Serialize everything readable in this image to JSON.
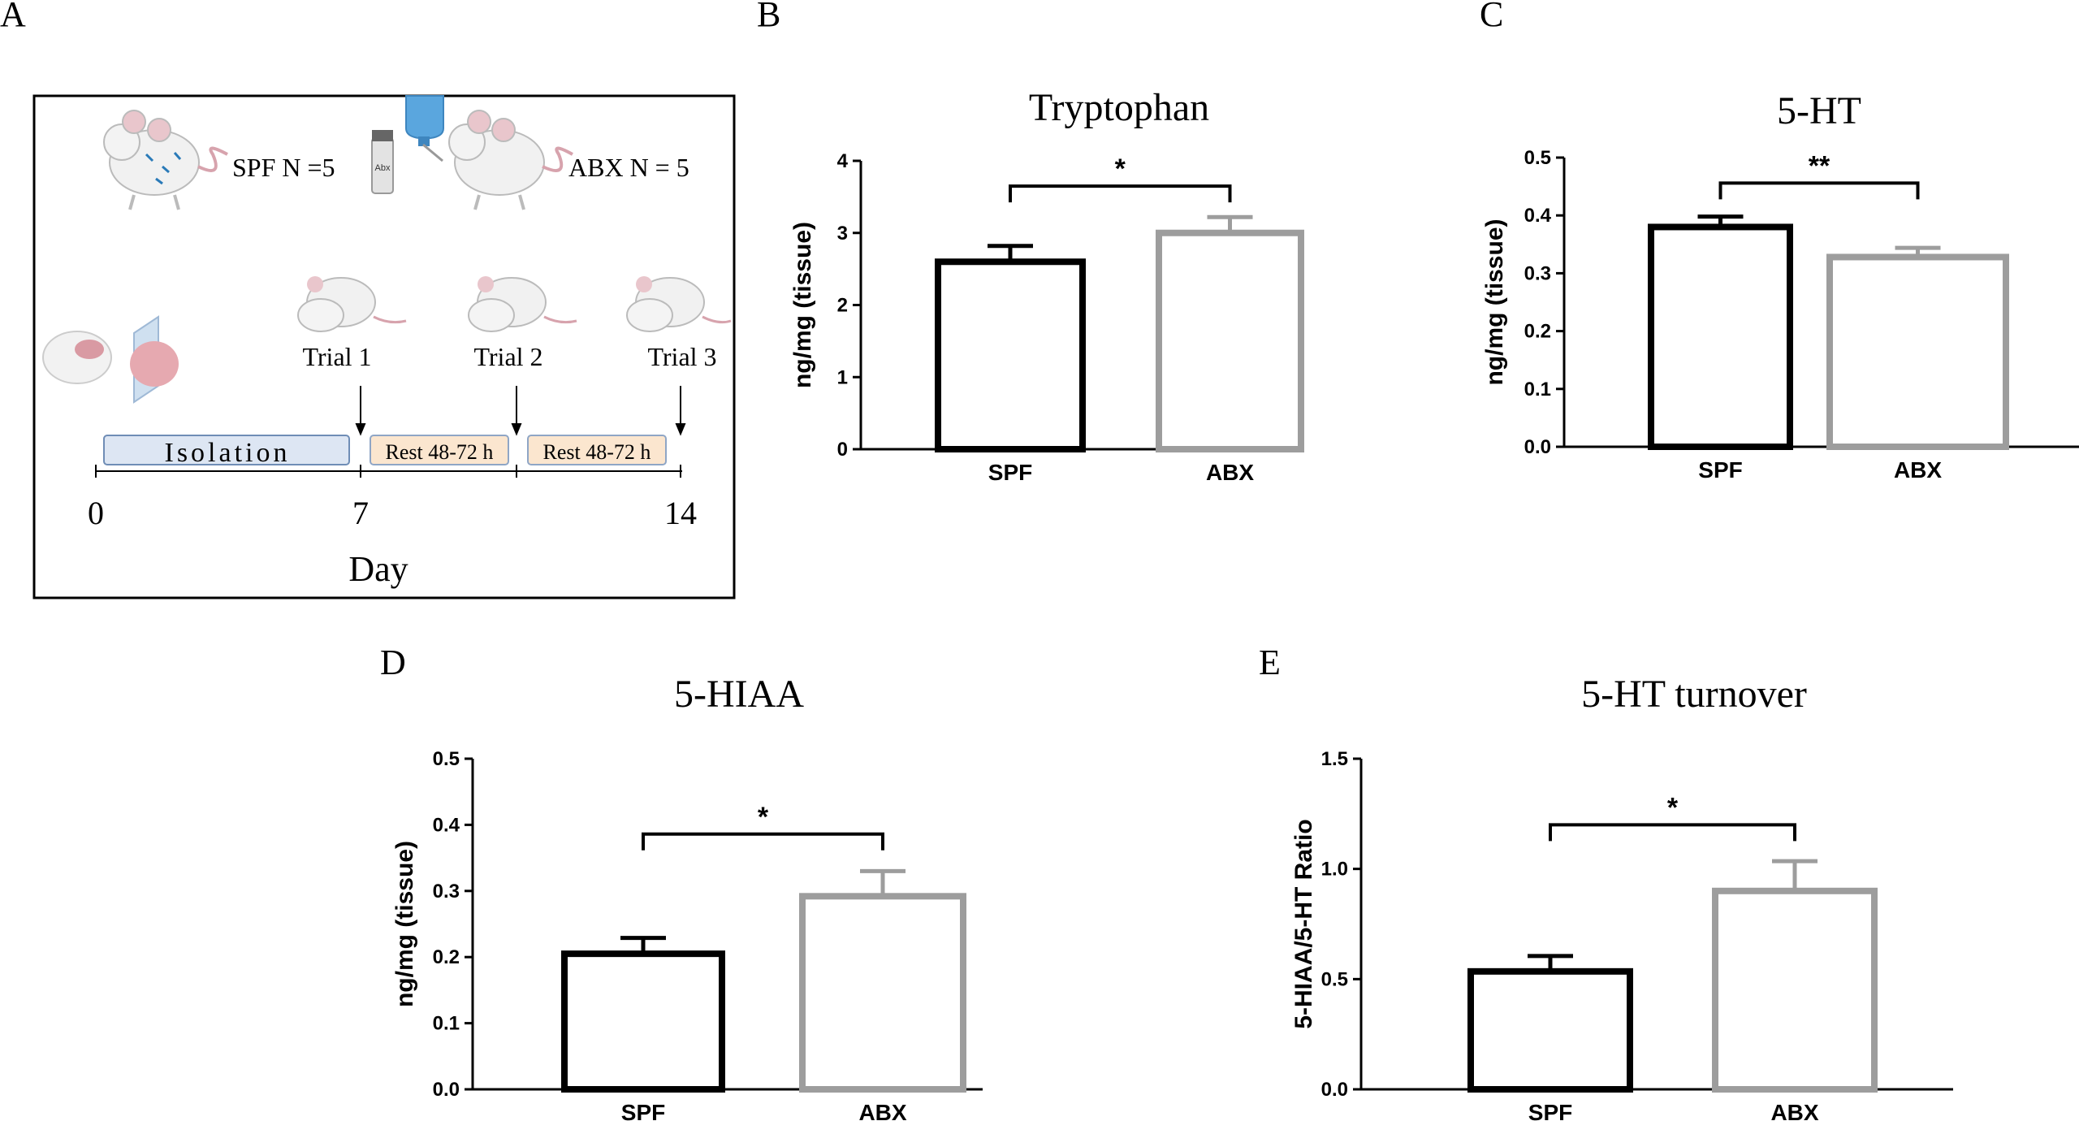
{
  "panel_a": {
    "letter": "A",
    "spf_label": "SPF  N =5",
    "abx_label": "ABX N = 5",
    "bottle_label": "Abx",
    "trials": [
      "Trial 1",
      "Trial 2",
      "Trial 3"
    ],
    "isolation": "Isolation",
    "rest1": "Rest 48-72 h",
    "rest2": "Rest 48-72 h",
    "day_ticks": [
      "0",
      "7",
      "14"
    ],
    "day_label": "Day"
  },
  "colors": {
    "spf": "#000000",
    "abx": "#9d9d9d",
    "isolation_fill": "#dde6f3",
    "isolation_stroke": "#6f8db6",
    "rest_fill": "#fbe6cf",
    "rest_stroke": "#8fa6c6"
  },
  "chart_data": [
    {
      "letter": "B",
      "type": "bar",
      "title": "Tryptophan",
      "ylabel": "ng/mg (tissue)",
      "categories": [
        "SPF",
        "ABX"
      ],
      "values": [
        2.6,
        3.0
      ],
      "errors": [
        0.22,
        0.22
      ],
      "ylim": [
        0,
        4
      ],
      "yticks": [
        0,
        1,
        2,
        3,
        4
      ],
      "ytick_labels": [
        "0",
        "1",
        "2",
        "3",
        "4"
      ],
      "significance": "*",
      "sig_value": 3.65
    },
    {
      "letter": "C",
      "type": "bar",
      "title": "5-HT",
      "ylabel": "ng/mg (tissue)",
      "categories": [
        "SPF",
        "ABX"
      ],
      "values": [
        0.38,
        0.328
      ],
      "errors": [
        0.018,
        0.016
      ],
      "ylim": [
        0,
        0.5
      ],
      "yticks": [
        0,
        0.1,
        0.2,
        0.3,
        0.4,
        0.5
      ],
      "ytick_labels": [
        "0.0",
        "0.1",
        "0.2",
        "0.3",
        "0.4",
        "0.5"
      ],
      "significance": "**",
      "sig_value": 0.456
    },
    {
      "letter": "D",
      "type": "bar",
      "title": "5-HIAA",
      "ylabel": "ng/mg (tissue)",
      "categories": [
        "SPF",
        "ABX"
      ],
      "values": [
        0.205,
        0.292
      ],
      "errors": [
        0.024,
        0.038
      ],
      "ylim": [
        0,
        0.5
      ],
      "yticks": [
        0,
        0.1,
        0.2,
        0.3,
        0.4,
        0.5
      ],
      "ytick_labels": [
        "0.0",
        "0.1",
        "0.2",
        "0.3",
        "0.4",
        "0.5"
      ],
      "significance": "*",
      "sig_value": 0.386
    },
    {
      "letter": "E",
      "type": "bar",
      "title": "5-HT turnover",
      "ylabel": "5-HIAA/5-HT Ratio",
      "categories": [
        "SPF",
        "ABX"
      ],
      "values": [
        0.535,
        0.9
      ],
      "errors": [
        0.07,
        0.135
      ],
      "ylim": [
        0,
        1.5
      ],
      "yticks": [
        0,
        0.5,
        1.0,
        1.5
      ],
      "ytick_labels": [
        "0.0",
        "0.5",
        "1.0",
        "1.5"
      ],
      "significance": "*",
      "sig_value": 1.2
    }
  ]
}
